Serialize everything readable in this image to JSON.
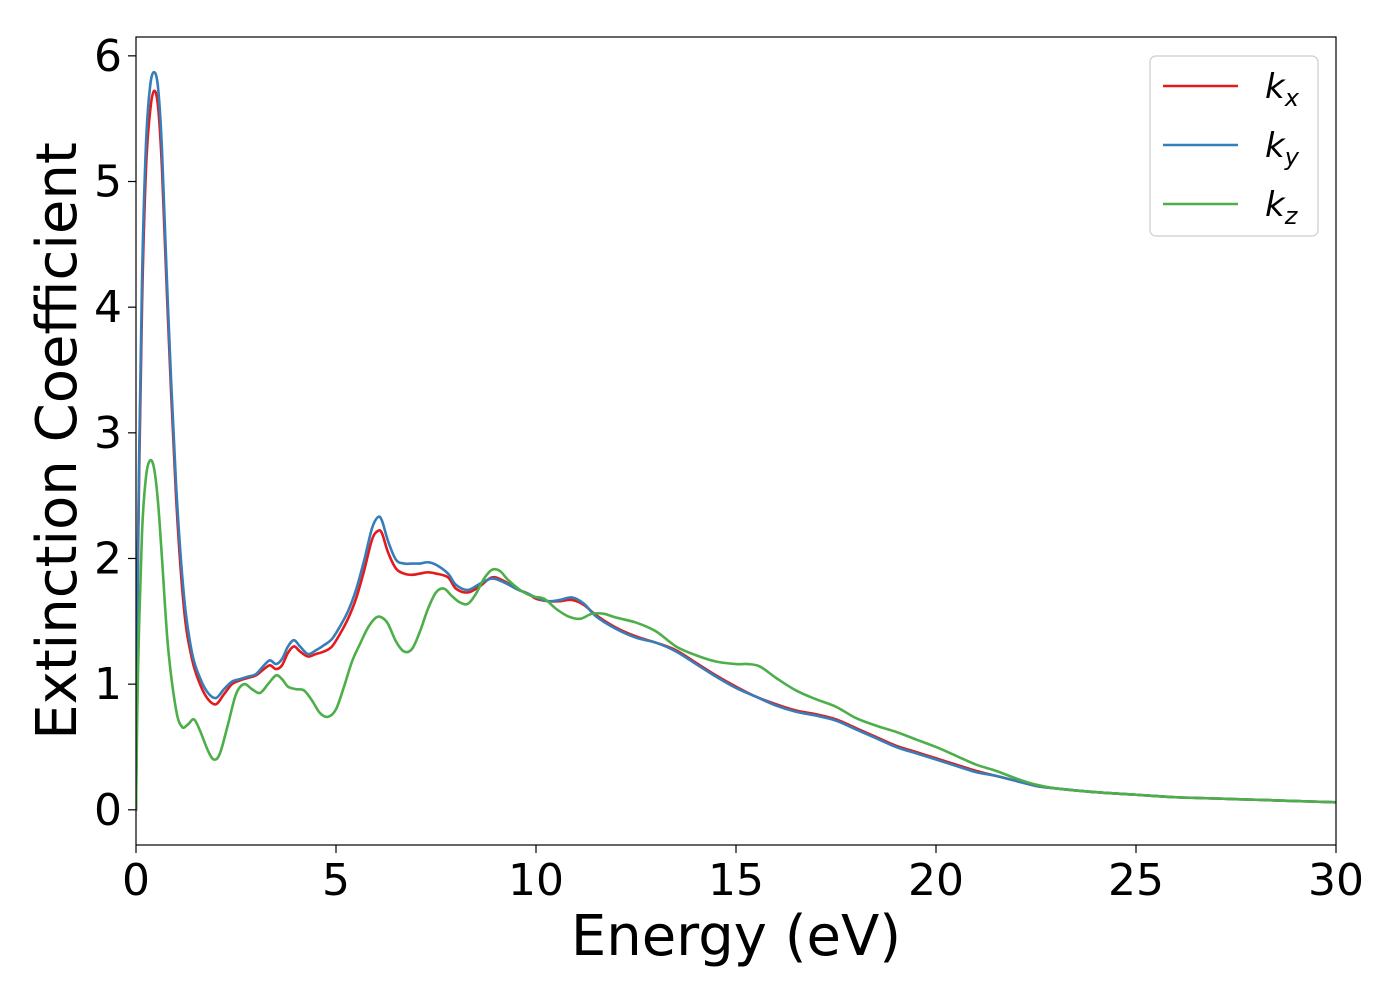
{
  "chart_data": {
    "type": "line",
    "xlabel": "Energy (eV)",
    "ylabel": "Extinction Coefficient",
    "xlim": [
      0,
      30
    ],
    "ylim": [
      -0.28,
      6.15
    ],
    "xticks": [
      0,
      5,
      10,
      15,
      20,
      25,
      30
    ],
    "yticks": [
      0,
      1,
      2,
      3,
      4,
      5,
      6
    ],
    "grid": false,
    "legend_position": "top-right",
    "series": [
      {
        "name": "k_x",
        "legend_base": "k",
        "legend_sub": "x",
        "color": "#e41a1c",
        "x": [
          0,
          0.05,
          0.15,
          0.25,
          0.35,
          0.45,
          0.55,
          0.65,
          0.8,
          1.0,
          1.2,
          1.4,
          1.6,
          1.8,
          2.0,
          2.2,
          2.4,
          2.6,
          2.8,
          3.0,
          3.2,
          3.35,
          3.5,
          3.65,
          3.8,
          3.95,
          4.1,
          4.3,
          4.5,
          4.7,
          4.9,
          5.1,
          5.3,
          5.5,
          5.7,
          5.9,
          6.05,
          6.15,
          6.3,
          6.5,
          6.7,
          6.9,
          7.1,
          7.3,
          7.5,
          7.8,
          8.0,
          8.3,
          8.6,
          8.9,
          9.2,
          9.5,
          9.8,
          10.0,
          10.3,
          10.6,
          10.9,
          11.2,
          11.5,
          12.0,
          12.5,
          13.0,
          13.5,
          14.0,
          14.5,
          15.0,
          15.5,
          16.0,
          16.5,
          17.0,
          17.5,
          18.0,
          18.5,
          19.0,
          19.5,
          20.0,
          20.5,
          21.0,
          21.5,
          22.0,
          22.5,
          23.0,
          24.0,
          25.0,
          26.0,
          27.0,
          28.0,
          29.0,
          30.0
        ],
        "values": [
          0.0,
          2.0,
          4.0,
          5.1,
          5.55,
          5.72,
          5.6,
          5.1,
          3.9,
          2.5,
          1.6,
          1.2,
          1.0,
          0.88,
          0.84,
          0.92,
          1.0,
          1.03,
          1.05,
          1.07,
          1.12,
          1.15,
          1.12,
          1.15,
          1.25,
          1.3,
          1.26,
          1.22,
          1.24,
          1.26,
          1.3,
          1.4,
          1.52,
          1.68,
          1.9,
          2.15,
          2.22,
          2.2,
          2.05,
          1.92,
          1.88,
          1.87,
          1.88,
          1.89,
          1.88,
          1.85,
          1.76,
          1.73,
          1.78,
          1.85,
          1.82,
          1.76,
          1.72,
          1.68,
          1.66,
          1.66,
          1.67,
          1.63,
          1.55,
          1.45,
          1.38,
          1.33,
          1.27,
          1.17,
          1.07,
          0.98,
          0.9,
          0.84,
          0.79,
          0.76,
          0.72,
          0.65,
          0.58,
          0.51,
          0.46,
          0.41,
          0.36,
          0.31,
          0.27,
          0.23,
          0.19,
          0.17,
          0.14,
          0.12,
          0.1,
          0.09,
          0.08,
          0.07,
          0.06
        ]
      },
      {
        "name": "k_y",
        "legend_base": "k",
        "legend_sub": "y",
        "color": "#377eb8",
        "x": [
          0,
          0.05,
          0.15,
          0.25,
          0.35,
          0.45,
          0.55,
          0.65,
          0.8,
          1.0,
          1.2,
          1.4,
          1.6,
          1.8,
          2.0,
          2.2,
          2.4,
          2.6,
          2.8,
          3.0,
          3.2,
          3.35,
          3.5,
          3.65,
          3.8,
          3.95,
          4.1,
          4.3,
          4.5,
          4.7,
          4.9,
          5.1,
          5.3,
          5.5,
          5.7,
          5.9,
          6.05,
          6.15,
          6.3,
          6.5,
          6.7,
          6.9,
          7.1,
          7.3,
          7.5,
          7.8,
          8.0,
          8.3,
          8.6,
          8.9,
          9.2,
          9.5,
          9.8,
          10.0,
          10.3,
          10.6,
          10.9,
          11.2,
          11.5,
          12.0,
          12.5,
          13.0,
          13.5,
          14.0,
          14.5,
          15.0,
          15.5,
          16.0,
          16.5,
          17.0,
          17.5,
          18.0,
          18.5,
          19.0,
          19.5,
          20.0,
          20.5,
          21.0,
          21.5,
          22.0,
          22.5,
          23.0,
          24.0,
          25.0,
          26.0,
          27.0,
          28.0,
          29.0,
          30.0
        ],
        "values": [
          0.0,
          2.1,
          4.2,
          5.3,
          5.75,
          5.87,
          5.75,
          5.25,
          4.0,
          2.6,
          1.7,
          1.25,
          1.05,
          0.93,
          0.89,
          0.96,
          1.02,
          1.04,
          1.06,
          1.08,
          1.15,
          1.19,
          1.16,
          1.2,
          1.3,
          1.35,
          1.3,
          1.24,
          1.27,
          1.31,
          1.36,
          1.46,
          1.58,
          1.75,
          1.98,
          2.24,
          2.33,
          2.3,
          2.14,
          1.99,
          1.96,
          1.96,
          1.96,
          1.97,
          1.95,
          1.88,
          1.79,
          1.75,
          1.8,
          1.84,
          1.81,
          1.76,
          1.72,
          1.69,
          1.66,
          1.67,
          1.69,
          1.64,
          1.54,
          1.44,
          1.37,
          1.33,
          1.26,
          1.16,
          1.06,
          0.97,
          0.9,
          0.83,
          0.78,
          0.75,
          0.71,
          0.64,
          0.57,
          0.5,
          0.45,
          0.4,
          0.35,
          0.3,
          0.27,
          0.23,
          0.19,
          0.17,
          0.14,
          0.12,
          0.1,
          0.09,
          0.08,
          0.07,
          0.06
        ]
      },
      {
        "name": "k_z",
        "legend_base": "k",
        "legend_sub": "z",
        "color": "#4daf4a",
        "x": [
          0,
          0.05,
          0.15,
          0.25,
          0.35,
          0.45,
          0.55,
          0.65,
          0.8,
          1.0,
          1.15,
          1.3,
          1.45,
          1.6,
          1.8,
          1.95,
          2.1,
          2.3,
          2.5,
          2.7,
          2.9,
          3.1,
          3.3,
          3.5,
          3.65,
          3.8,
          4.0,
          4.2,
          4.4,
          4.6,
          4.8,
          5.0,
          5.2,
          5.4,
          5.6,
          5.8,
          6.0,
          6.15,
          6.3,
          6.5,
          6.7,
          6.9,
          7.1,
          7.3,
          7.5,
          7.7,
          7.9,
          8.1,
          8.3,
          8.5,
          8.7,
          8.9,
          9.1,
          9.3,
          9.6,
          9.9,
          10.2,
          10.5,
          10.8,
          11.1,
          11.4,
          11.7,
          12.0,
          12.5,
          13.0,
          13.5,
          14.0,
          14.5,
          15.0,
          15.3,
          15.6,
          16.0,
          16.5,
          17.0,
          17.5,
          18.0,
          18.5,
          19.0,
          19.5,
          20.0,
          20.5,
          21.0,
          21.5,
          22.0,
          22.5,
          23.0,
          24.0,
          25.0,
          26.0,
          27.0,
          28.0,
          29.0,
          30.0
        ],
        "values": [
          0.0,
          1.1,
          2.2,
          2.65,
          2.78,
          2.72,
          2.45,
          2.0,
          1.3,
          0.8,
          0.66,
          0.68,
          0.72,
          0.63,
          0.47,
          0.4,
          0.45,
          0.68,
          0.92,
          1.0,
          0.96,
          0.93,
          1.0,
          1.07,
          1.04,
          0.98,
          0.96,
          0.95,
          0.87,
          0.77,
          0.74,
          0.8,
          0.98,
          1.18,
          1.32,
          1.45,
          1.53,
          1.53,
          1.48,
          1.34,
          1.26,
          1.28,
          1.42,
          1.6,
          1.73,
          1.76,
          1.7,
          1.65,
          1.64,
          1.72,
          1.84,
          1.91,
          1.9,
          1.83,
          1.75,
          1.7,
          1.68,
          1.6,
          1.54,
          1.52,
          1.56,
          1.56,
          1.53,
          1.49,
          1.42,
          1.3,
          1.23,
          1.18,
          1.16,
          1.16,
          1.14,
          1.05,
          0.95,
          0.88,
          0.82,
          0.73,
          0.67,
          0.62,
          0.56,
          0.5,
          0.43,
          0.36,
          0.31,
          0.25,
          0.2,
          0.17,
          0.14,
          0.12,
          0.1,
          0.09,
          0.08,
          0.07,
          0.06
        ]
      }
    ]
  }
}
